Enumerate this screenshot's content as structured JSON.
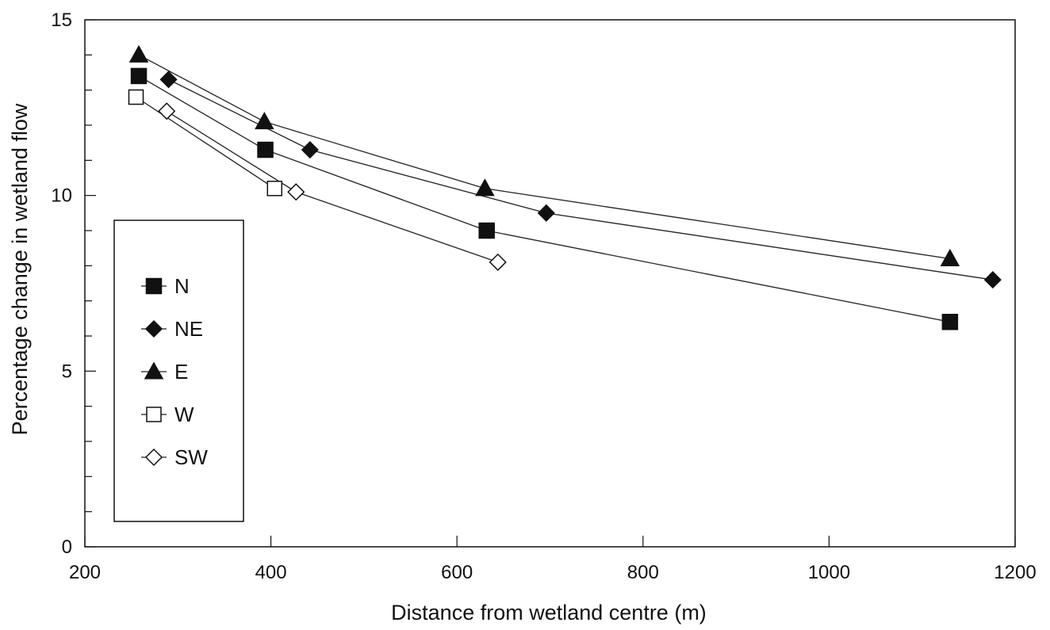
{
  "chart_data": {
    "type": "line",
    "title": "",
    "xlabel": "Distance from wetland centre (m)",
    "ylabel": "Percentage change in wetland flow",
    "xlim": [
      200,
      1200
    ],
    "ylim": [
      0,
      15
    ],
    "xticks": [
      200,
      400,
      600,
      800,
      1000,
      1200
    ],
    "yticks": [
      0,
      5,
      10,
      15
    ],
    "yminor_step": 1,
    "grid": false,
    "legend_position": "left",
    "series": [
      {
        "name": "N",
        "marker": "square-filled",
        "x": [
          258,
          394,
          632,
          1130
        ],
        "y": [
          13.4,
          11.3,
          9.0,
          6.4
        ]
      },
      {
        "name": "NE",
        "marker": "diamond-filled",
        "x": [
          290,
          442,
          696,
          1176
        ],
        "y": [
          13.3,
          11.3,
          9.5,
          7.6
        ]
      },
      {
        "name": "E",
        "marker": "triangle-filled",
        "x": [
          258,
          393,
          630,
          1130
        ],
        "y": [
          14.0,
          12.1,
          10.2,
          8.2
        ]
      },
      {
        "name": "W",
        "marker": "square-open",
        "x": [
          255,
          404
        ],
        "y": [
          12.8,
          10.2
        ]
      },
      {
        "name": "SW",
        "marker": "diamond-open",
        "x": [
          288,
          427,
          644
        ],
        "y": [
          12.4,
          10.1,
          8.1
        ]
      }
    ]
  }
}
